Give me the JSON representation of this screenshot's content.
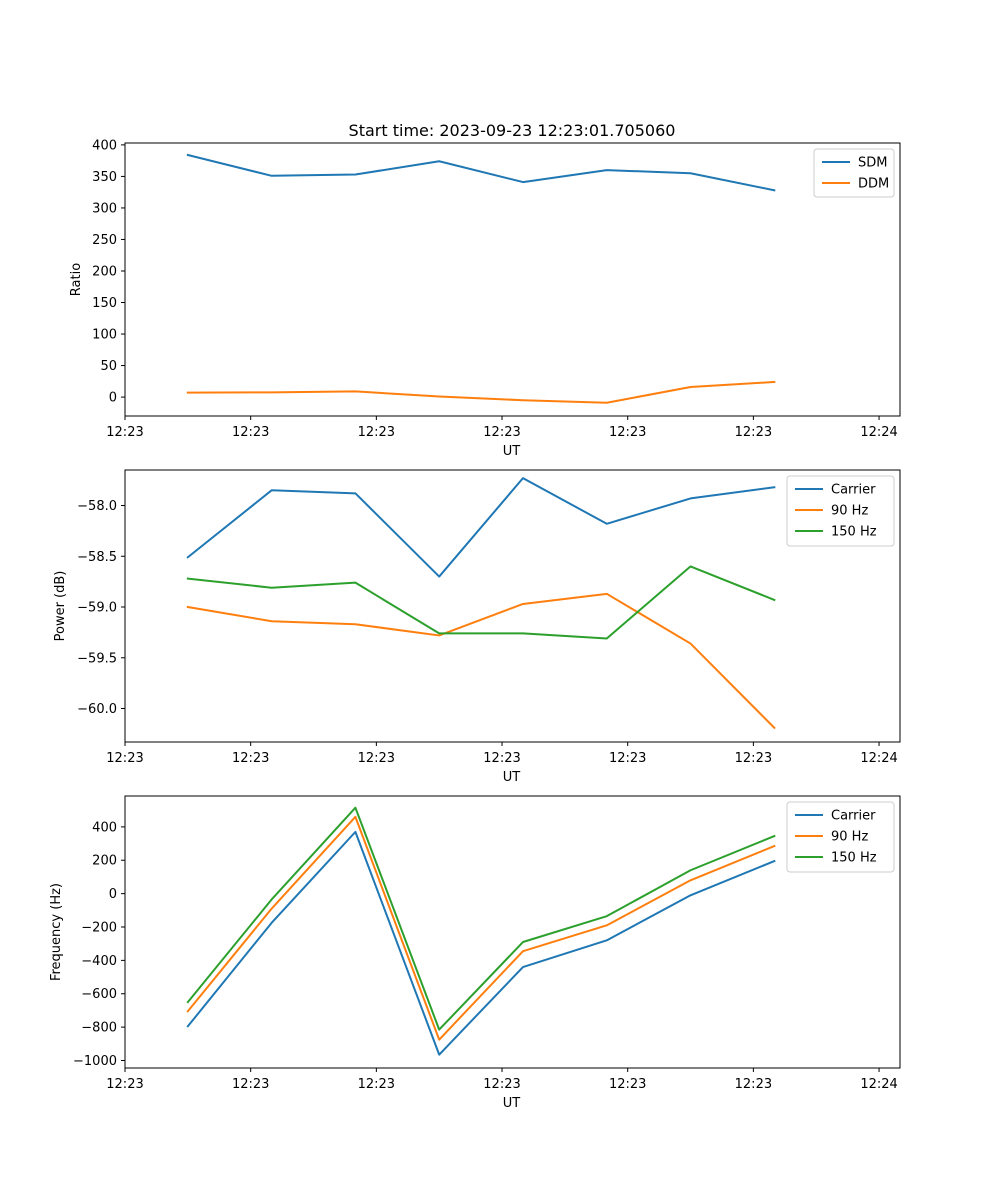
{
  "figure_title": "Start time: 2023-09-23 12:23:01.705060",
  "chart_data": [
    {
      "type": "line",
      "title": "Start time: 2023-09-23 12:23:01.705060",
      "xlabel": "UT",
      "ylabel": "Ratio",
      "x": [
        0,
        1,
        2,
        3,
        4,
        5,
        6,
        7
      ],
      "xlim": [
        -0.75,
        8.5
      ],
      "x_ticks": [
        -0.75,
        0.75,
        2.25,
        3.75,
        5.25,
        6.75,
        8.25
      ],
      "x_tick_labels": [
        "12:23",
        "12:23",
        "12:23",
        "12:23",
        "12:23",
        "12:23",
        "12:24"
      ],
      "ylim": [
        -30,
        403
      ],
      "y_ticks": [
        0,
        50,
        100,
        150,
        200,
        250,
        300,
        350,
        400
      ],
      "y_tick_labels": [
        "0",
        "50",
        "100",
        "150",
        "200",
        "250",
        "300",
        "350",
        "400"
      ],
      "legend_position": "top-right",
      "series": [
        {
          "name": "SDM",
          "color": "#1f77b4",
          "values": [
            384,
            351,
            353,
            374,
            341,
            360,
            355,
            328
          ]
        },
        {
          "name": "DDM",
          "color": "#ff7f0e",
          "values": [
            7,
            7.5,
            9,
            1,
            -5,
            -9,
            16,
            24
          ]
        }
      ]
    },
    {
      "type": "line",
      "xlabel": "UT",
      "ylabel": "Power (dB)",
      "x": [
        0,
        1,
        2,
        3,
        4,
        5,
        6,
        7
      ],
      "xlim": [
        -0.75,
        8.5
      ],
      "x_ticks": [
        -0.75,
        0.75,
        2.25,
        3.75,
        5.25,
        6.75,
        8.25
      ],
      "x_tick_labels": [
        "12:23",
        "12:23",
        "12:23",
        "12:23",
        "12:23",
        "12:23",
        "12:24"
      ],
      "ylim": [
        -60.33,
        -57.65
      ],
      "y_ticks": [
        -58.0,
        -58.5,
        -59.0,
        -59.5,
        -60.0
      ],
      "y_tick_labels": [
        "−58.0",
        "−58.5",
        "−59.0",
        "−59.5",
        "−60.0"
      ],
      "legend_position": "top-right",
      "series": [
        {
          "name": "Carrier",
          "color": "#1f77b4",
          "values": [
            -58.51,
            -57.85,
            -57.88,
            -58.7,
            -57.73,
            -58.18,
            -57.93,
            -57.82
          ]
        },
        {
          "name": "90 Hz",
          "color": "#ff7f0e",
          "values": [
            -59.0,
            -59.14,
            -59.17,
            -59.28,
            -58.97,
            -58.87,
            -59.36,
            -60.19
          ]
        },
        {
          "name": "150 Hz",
          "color": "#2ca02c",
          "values": [
            -58.72,
            -58.81,
            -58.76,
            -59.26,
            -59.26,
            -59.31,
            -58.6,
            -58.93
          ]
        }
      ]
    },
    {
      "type": "line",
      "xlabel": "UT",
      "ylabel": "Frequency (Hz)",
      "x": [
        0,
        1,
        2,
        3,
        4,
        5,
        6,
        7
      ],
      "xlim": [
        -0.75,
        8.5
      ],
      "x_ticks": [
        -0.75,
        0.75,
        2.25,
        3.75,
        5.25,
        6.75,
        8.25
      ],
      "x_tick_labels": [
        "12:23",
        "12:23",
        "12:23",
        "12:23",
        "12:23",
        "12:23",
        "12:24"
      ],
      "ylim": [
        -1045,
        585
      ],
      "y_ticks": [
        400,
        200,
        0,
        -200,
        -400,
        -600,
        -800,
        -1000
      ],
      "y_tick_labels": [
        "400",
        "200",
        "0",
        "−200",
        "−400",
        "−600",
        "−800",
        "−1000"
      ],
      "legend_position": "top-right",
      "series": [
        {
          "name": "Carrier",
          "color": "#1f77b4",
          "values": [
            -795,
            -175,
            370,
            -965,
            -440,
            -280,
            -10,
            195
          ]
        },
        {
          "name": "90 Hz",
          "color": "#ff7f0e",
          "values": [
            -705,
            -90,
            460,
            -875,
            -345,
            -190,
            80,
            285
          ]
        },
        {
          "name": "150 Hz",
          "color": "#2ca02c",
          "values": [
            -650,
            -35,
            515,
            -815,
            -290,
            -135,
            140,
            345
          ]
        }
      ]
    }
  ]
}
